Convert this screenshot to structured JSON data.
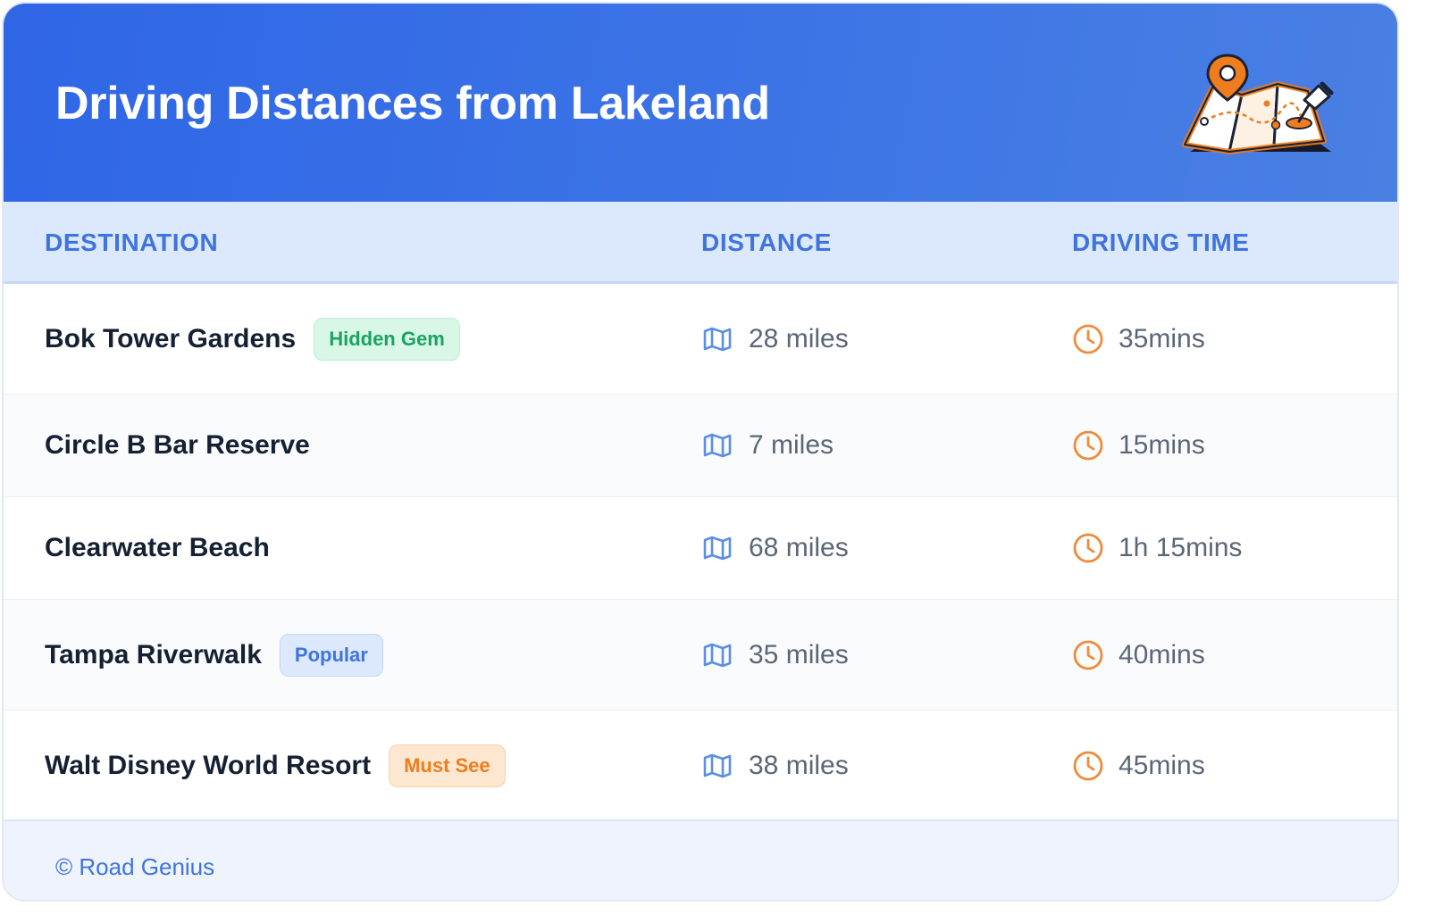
{
  "header": {
    "title": "Driving Distances from Lakeland",
    "illustration_icon": "folded-map-with-pins-icon"
  },
  "columns": {
    "destination": "DESTINATION",
    "distance": "DISTANCE",
    "driving_time": "DRIVING TIME"
  },
  "rows": [
    {
      "destination": "Bok Tower Gardens",
      "badge": "Hidden Gem",
      "badge_style": "green",
      "distance": "28 miles",
      "time": "35mins"
    },
    {
      "destination": "Circle B Bar Reserve",
      "badge": "",
      "badge_style": "",
      "distance": "7 miles",
      "time": "15mins"
    },
    {
      "destination": "Clearwater Beach",
      "badge": "",
      "badge_style": "",
      "distance": "68 miles",
      "time": "1h 15mins"
    },
    {
      "destination": "Tampa Riverwalk",
      "badge": "Popular",
      "badge_style": "blue",
      "distance": "35 miles",
      "time": "40mins"
    },
    {
      "destination": "Walt Disney World Resort",
      "badge": "Must See",
      "badge_style": "orange",
      "distance": "38 miles",
      "time": "45mins"
    }
  ],
  "icons": {
    "distance": "map-icon",
    "time": "clock-icon"
  },
  "colors": {
    "banner": "#2f66e6",
    "accent": "#3f74de",
    "badge_green": "#1aa362",
    "badge_blue": "#3f74de",
    "badge_orange": "#ef7d1d",
    "clock": "#f08a3c"
  },
  "footer": {
    "credit": "© Road Genius"
  }
}
